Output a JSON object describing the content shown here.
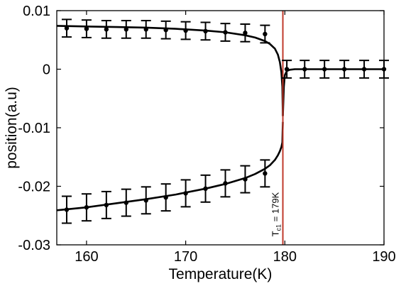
{
  "chart_data": {
    "type": "line",
    "title": "",
    "xlabel": "Temperature(K)",
    "ylabel": "position(a.u)",
    "xlim": [
      157,
      190
    ],
    "ylim": [
      -0.03,
      0.01
    ],
    "xticks": [
      160,
      170,
      180,
      190
    ],
    "yticks": [
      0.01,
      0,
      -0.01,
      -0.02,
      -0.03
    ],
    "xtick_labels": [
      "160",
      "170",
      "180",
      "190"
    ],
    "ytick_labels": [
      "0.01",
      "0",
      "-0.01",
      "-0.02",
      "-0.03"
    ],
    "grid": false,
    "vline": {
      "x": 179.8,
      "color": "#c0392b",
      "label_main": "T",
      "label_sub": "c1",
      "label_rest": " = 179K"
    },
    "series": [
      {
        "marker": "dot",
        "error_bar": 0.0015,
        "x": [
          158,
          160,
          162,
          164,
          166,
          168,
          170,
          172,
          174,
          176,
          178
        ],
        "y": [
          0.007,
          0.0069,
          0.0068,
          0.0068,
          0.0068,
          0.0067,
          0.0066,
          0.0065,
          0.0063,
          0.0062,
          0.006
        ]
      },
      {
        "marker": "dot",
        "error_bar": 0.0023,
        "x": [
          158,
          160,
          162,
          164,
          166,
          168,
          170,
          172,
          174,
          176,
          178
        ],
        "y": [
          -0.024,
          -0.0236,
          -0.0232,
          -0.0228,
          -0.0224,
          -0.0219,
          -0.0212,
          -0.0204,
          -0.0195,
          -0.0188,
          -0.0178
        ]
      },
      {
        "marker": "dot",
        "error_bar": 0.0015,
        "x": [
          180.2,
          182,
          184,
          186,
          188,
          190
        ],
        "y": [
          0,
          0,
          0,
          0,
          0,
          0
        ]
      }
    ],
    "fit_curves": [
      {
        "x": [
          157,
          160,
          163,
          166,
          169,
          172,
          174,
          176,
          177,
          178,
          178.5,
          179,
          179.3,
          179.5,
          179.65,
          179.75,
          179.8
        ],
        "y": [
          0.0074,
          0.0073,
          0.0072,
          0.0071,
          0.0069,
          0.0066,
          0.0063,
          0.0058,
          0.0054,
          0.0048,
          0.0043,
          0.0035,
          0.0025,
          0.0012,
          -0.0005,
          -0.003,
          -0.008
        ]
      },
      {
        "x": [
          157,
          160,
          163,
          166,
          169,
          172,
          174,
          176,
          177,
          178,
          178.5,
          179,
          179.3,
          179.5,
          179.65,
          179.75,
          179.8
        ],
        "y": [
          -0.0241,
          -0.0236,
          -0.0229,
          -0.0222,
          -0.0214,
          -0.0204,
          -0.0196,
          -0.0186,
          -0.0179,
          -0.017,
          -0.0164,
          -0.0155,
          -0.0147,
          -0.014,
          -0.0133,
          -0.0125,
          -0.009
        ]
      },
      {
        "x": [
          179.8,
          179.9,
          180.0,
          180.2,
          180.5,
          181,
          183,
          186,
          190
        ],
        "y": [
          -0.008,
          -0.003,
          -0.001,
          -0.0003,
          -0.0001,
          0,
          0,
          0,
          0
        ]
      }
    ]
  }
}
